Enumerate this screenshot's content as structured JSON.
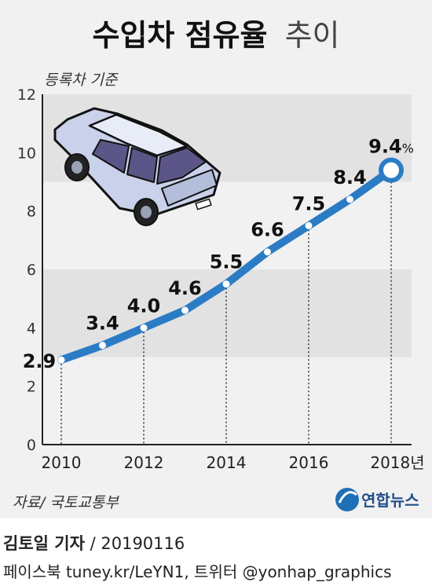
{
  "title_bold": "수입차 점유율",
  "title_light": "추이",
  "note": "등록차 기준",
  "source": "자료/ 국토교통부",
  "logo_text": "연합뉴스",
  "credit": {
    "reporter": "김토일 기자",
    "separator": " / ",
    "date": "20190116",
    "social": "페이스북 tuney.kr/LeYN1, 트위터 @yonhap_graphics"
  },
  "colors": {
    "line": "#2b7cc5",
    "band": "#e2e2e2",
    "background": "#f1f1f1",
    "car_body": "#c9d2ea",
    "car_window": "#5b5687"
  },
  "chart_data": {
    "type": "line",
    "x": [
      2010,
      2011,
      2012,
      2013,
      2014,
      2015,
      2016,
      2017,
      2018
    ],
    "values": [
      2.9,
      3.4,
      4.0,
      4.6,
      5.5,
      6.6,
      7.5,
      8.4,
      9.4
    ],
    "labels": [
      "2.9",
      "3.4",
      "4.0",
      "4.6",
      "5.5",
      "6.6",
      "7.5",
      "8.4",
      "9.4"
    ],
    "last_label_unit": "%",
    "x_ticks": [
      "2010",
      "2012",
      "2014",
      "2016",
      "2018년"
    ],
    "x_tick_years": [
      2010,
      2012,
      2014,
      2016,
      2018
    ],
    "y_ticks": [
      "0",
      "2",
      "4",
      "6",
      "8",
      "10",
      "12"
    ],
    "ylim": [
      0,
      12
    ],
    "shaded_bands": [
      [
        3,
        6
      ],
      [
        9,
        12
      ]
    ],
    "grid": false
  }
}
